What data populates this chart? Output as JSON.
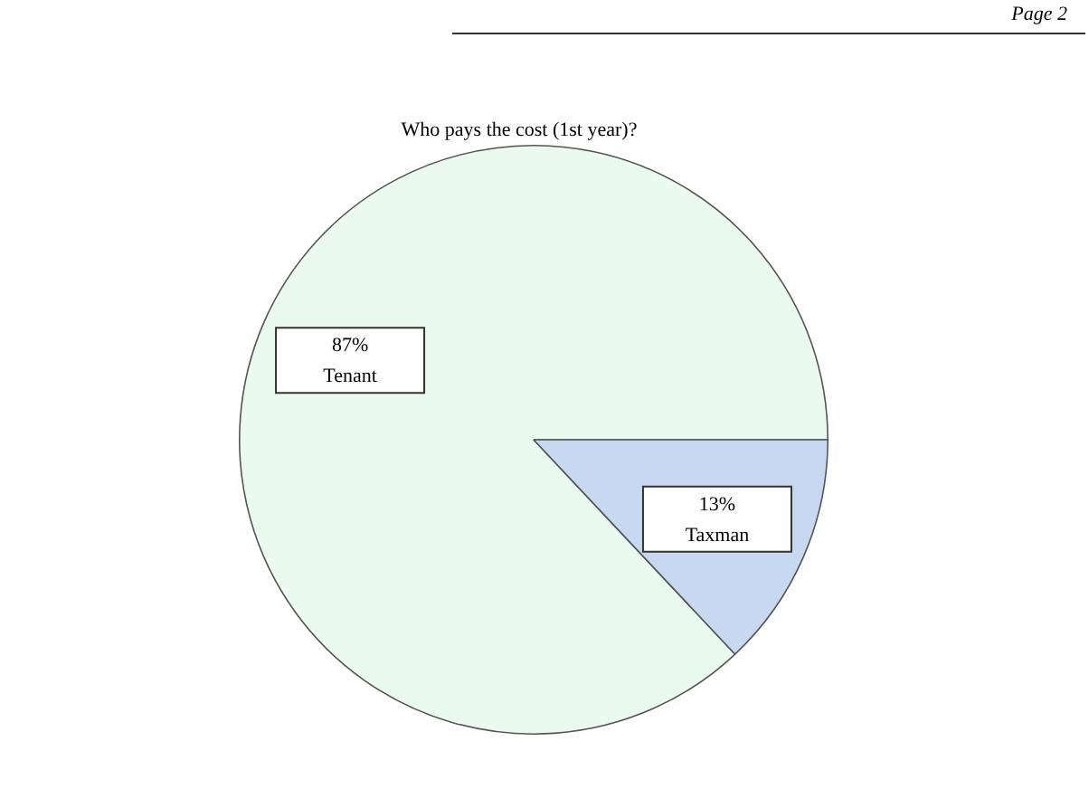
{
  "chart_data": {
    "type": "pie",
    "title": "Who pays the cost (1st year)?",
    "annotations": [
      "Page 2"
    ],
    "categories": [
      "Tenant",
      "Taxman"
    ],
    "values": [
      87,
      13
    ],
    "colors": [
      "#eafaee",
      "#c6d9f1"
    ],
    "value_labels": [
      "87%",
      "13%"
    ],
    "legend": false
  }
}
